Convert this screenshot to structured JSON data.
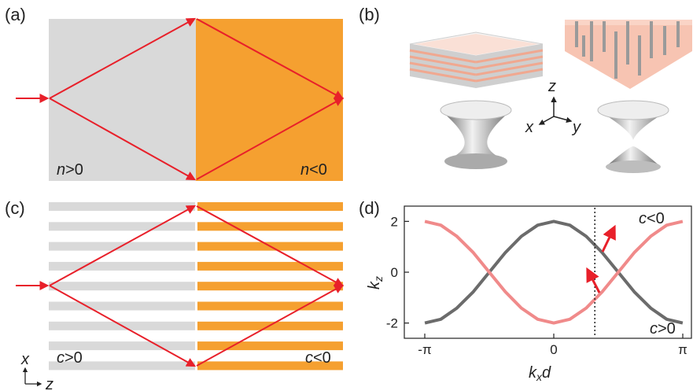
{
  "panels": {
    "a": {
      "label": "(a)",
      "left_region": {
        "var": "n",
        "rel": ">0",
        "color": "#d9d9d9"
      },
      "right_region": {
        "var": "n",
        "rel": "<0",
        "color": "#f5a030"
      }
    },
    "b": {
      "label": "(b)",
      "axes": {
        "z": "z",
        "x": "x",
        "y": "y"
      }
    },
    "c": {
      "label": "(c)",
      "left_region": {
        "var": "c",
        "rel": ">0",
        "color": "#d9d9d9"
      },
      "right_region": {
        "var": "c",
        "rel": "<0",
        "color": "#f5a030"
      },
      "axes": {
        "x": "x",
        "z": "z"
      }
    },
    "d": {
      "label": "(d)"
    }
  },
  "colors": {
    "ray": "#e8202a",
    "dark_curve": "#6b6b6b",
    "pink_curve": "#f08a8a"
  },
  "chart_data": {
    "type": "line",
    "xlabel": "k",
    "xlabel_sub": "x",
    "xlabel_suffix": "d",
    "ylabel": "k",
    "ylabel_sub": "z",
    "xlim": [
      -3.1416,
      3.1416
    ],
    "ylim": [
      -2.6,
      2.6
    ],
    "x_ticks": [
      {
        "value": -3.1416,
        "label": "-π"
      },
      {
        "value": 0,
        "label": "0"
      },
      {
        "value": 3.1416,
        "label": "π"
      }
    ],
    "y_ticks": [
      {
        "value": 2,
        "label": "2"
      },
      {
        "value": 0,
        "label": "0"
      },
      {
        "value": -2,
        "label": "-2"
      }
    ],
    "series": [
      {
        "color": "#6b6b6b",
        "x": [
          -3.14,
          -2.75,
          -2.36,
          -1.96,
          -1.57,
          -1.18,
          -0.79,
          -0.39,
          0,
          0.39,
          0.79,
          1.18,
          1.57,
          1.96,
          2.36,
          2.75,
          3.14
        ],
        "y": [
          -2,
          -1.85,
          -1.41,
          -0.77,
          0,
          0.77,
          1.41,
          1.85,
          2,
          1.85,
          1.41,
          0.77,
          0,
          -0.77,
          -1.41,
          -1.85,
          -2
        ]
      },
      {
        "color": "#f08a8a",
        "x": [
          -3.14,
          -2.75,
          -2.36,
          -1.96,
          -1.57,
          -1.18,
          -0.79,
          -0.39,
          0,
          0.39,
          0.79,
          1.18,
          1.57,
          1.96,
          2.36,
          2.75,
          3.14
        ],
        "y": [
          2,
          1.85,
          1.41,
          0.77,
          0,
          -0.77,
          -1.41,
          -1.85,
          -2,
          -1.85,
          -1.41,
          -0.77,
          0,
          0.77,
          1.41,
          1.85,
          2
        ]
      }
    ],
    "vline_x": 1.0,
    "annotations": [
      {
        "var": "c",
        "rel": "<0"
      },
      {
        "var": "c",
        "rel": ">0"
      }
    ]
  }
}
